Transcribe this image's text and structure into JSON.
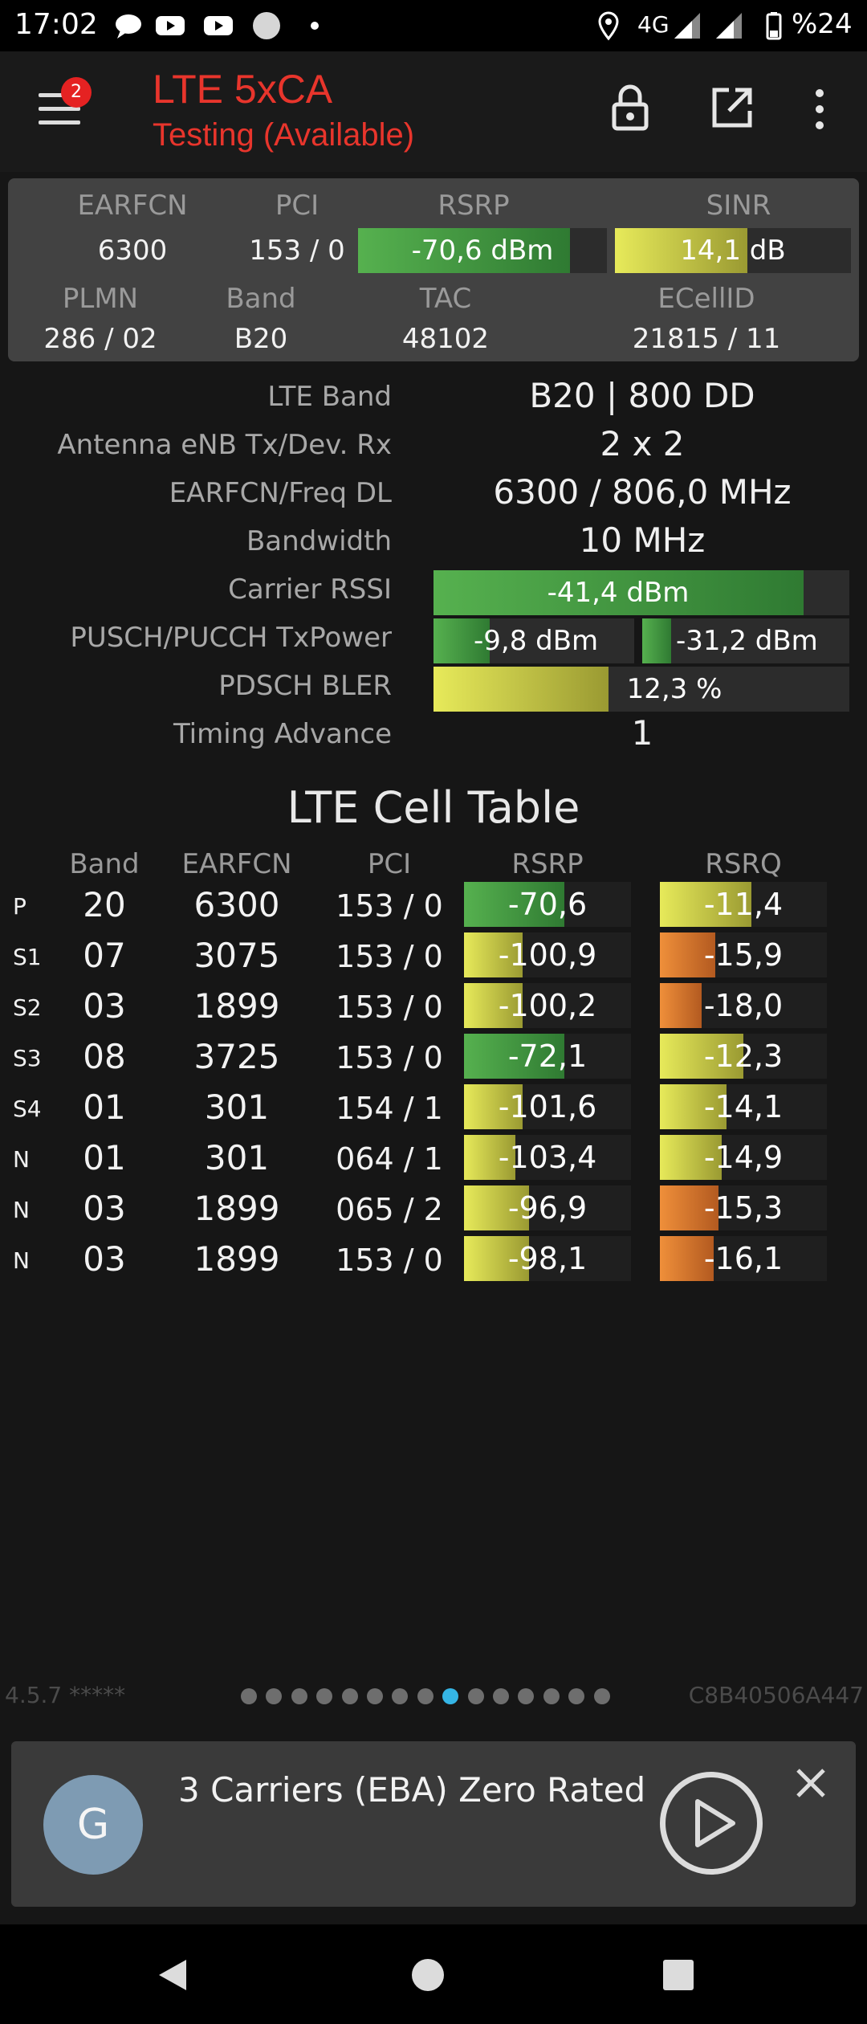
{
  "status_bar": {
    "time": "17:02",
    "network": "4G",
    "battery": "%24",
    "left_icons": [
      "chat-icon",
      "youtube-icon",
      "youtube-icon",
      "circle-icon",
      "dot-icon"
    ],
    "right_icons": [
      "location-icon",
      "signal-icon",
      "signal-icon",
      "battery-icon"
    ]
  },
  "app_bar": {
    "title": "LTE 5xCA",
    "subtitle": "Testing (Available)",
    "notification_count": "2",
    "icons": [
      "menu-icon",
      "lock-icon",
      "open-external-icon",
      "more-vert-icon"
    ]
  },
  "summary": {
    "headers1": {
      "earfcn": "EARFCN",
      "pci": "PCI",
      "rsrp": "RSRP",
      "sinr": "SINR"
    },
    "earfcn": "6300",
    "pci": "153 / 0",
    "rsrp_text": "-70,6 dBm",
    "rsrp_level": 0.85,
    "sinr_text": "14,1 dB",
    "sinr_level": 0.56,
    "headers2": {
      "plmn": "PLMN",
      "band": "Band",
      "tac": "TAC",
      "ecellid": "ECellID"
    },
    "plmn": "286 / 02",
    "band": "B20",
    "tac": "48102",
    "ecellid": "21815 / 11"
  },
  "info": {
    "lte_band_label": "LTE Band",
    "lte_band": "B20 | 800 DD",
    "antenna_label": "Antenna eNB Tx/Dev. Rx",
    "antenna": "2 x 2",
    "freq_label": "EARFCN/Freq DL",
    "freq": "6300 / 806,0 MHz",
    "bw_label": "Bandwidth",
    "bw": "10 MHz",
    "rssi_label": "Carrier RSSI",
    "rssi_text": "-41,4 dBm",
    "rssi_level": 0.89,
    "txpower_label": "PUSCH/PUCCH TxPower",
    "pusch_text": "-9,8 dBm",
    "pusch_level": 0.28,
    "pucch_text": "-31,2 dBm",
    "pucch_level": 0.14,
    "bler_label": "PDSCH BLER",
    "bler_text": "12,3 %",
    "bler_level": 0.42,
    "ta_label": "Timing Advance",
    "ta": "1"
  },
  "cell_table": {
    "title": "LTE Cell Table",
    "headers": {
      "band": "Band",
      "earfcn": "EARFCN",
      "pci": "PCI",
      "rsrp": "RSRP",
      "rsrq": "RSRQ"
    },
    "rows": [
      {
        "type": "P",
        "band": "20",
        "earfcn": "6300",
        "pci": "153 / 0",
        "rsrp": "-70,6",
        "rsrp_level": 0.6,
        "rsrp_color": "green",
        "rsrq": "-11,4",
        "rsrq_level": 0.55,
        "rsrq_color": "yellow"
      },
      {
        "type": "S1",
        "band": "07",
        "earfcn": "3075",
        "pci": "153 / 0",
        "rsrp": "-100,9",
        "rsrp_level": 0.35,
        "rsrp_color": "yellow",
        "rsrq": "-15,9",
        "rsrq_level": 0.33,
        "rsrq_color": "orange"
      },
      {
        "type": "S2",
        "band": "03",
        "earfcn": "1899",
        "pci": "153 / 0",
        "rsrp": "-100,2",
        "rsrp_level": 0.35,
        "rsrp_color": "yellow",
        "rsrq": "-18,0",
        "rsrq_level": 0.25,
        "rsrq_color": "orange"
      },
      {
        "type": "S3",
        "band": "08",
        "earfcn": "3725",
        "pci": "153 / 0",
        "rsrp": "-72,1",
        "rsrp_level": 0.6,
        "rsrp_color": "green",
        "rsrq": "-12,3",
        "rsrq_level": 0.5,
        "rsrq_color": "yellow"
      },
      {
        "type": "S4",
        "band": "01",
        "earfcn": "301",
        "pci": "154 / 1",
        "rsrp": "-101,6",
        "rsrp_level": 0.35,
        "rsrp_color": "yellow",
        "rsrq": "-14,1",
        "rsrq_level": 0.4,
        "rsrq_color": "yellow"
      },
      {
        "type": "N",
        "band": "01",
        "earfcn": "301",
        "pci": "064 / 1",
        "rsrp": "-103,4",
        "rsrp_level": 0.31,
        "rsrp_color": "yellow",
        "rsrq": "-14,9",
        "rsrq_level": 0.37,
        "rsrq_color": "yellow"
      },
      {
        "type": "N",
        "band": "03",
        "earfcn": "1899",
        "pci": "065 / 2",
        "rsrp": "-96,9",
        "rsrp_level": 0.39,
        "rsrp_color": "yellow",
        "rsrq": "-15,3",
        "rsrq_level": 0.35,
        "rsrq_color": "orange"
      },
      {
        "type": "N",
        "band": "03",
        "earfcn": "1899",
        "pci": "153 / 0",
        "rsrp": "-98,1",
        "rsrp_level": 0.39,
        "rsrp_color": "yellow",
        "rsrq": "-16,1",
        "rsrq_level": 0.32,
        "rsrq_color": "orange"
      }
    ]
  },
  "footer": {
    "version": "4.5.7 *****",
    "cell_id": "C8B40506A447",
    "page_count": 15,
    "active_page": 8
  },
  "media": {
    "avatar_letter": "G",
    "title": "3 Carriers (EBA) Zero Rated",
    "icons": [
      "play-icon",
      "close-icon"
    ]
  },
  "nav": {
    "icons": [
      "back-icon",
      "home-icon",
      "recents-icon"
    ]
  },
  "colors": {
    "accent_red": "#e8352c",
    "green": "#4caf50",
    "yellow": "#e7ea5a",
    "orange": "#ef8f3a",
    "active_dot": "#35b5e5"
  }
}
